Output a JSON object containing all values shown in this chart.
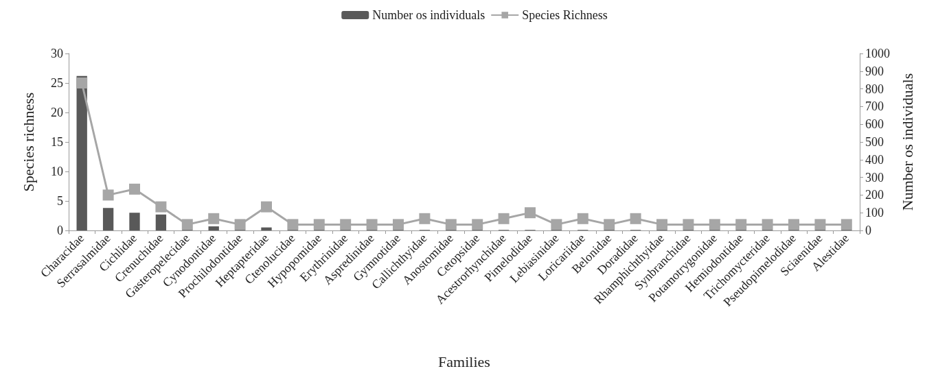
{
  "chart_data": {
    "type": "bar",
    "xlabel": "Families",
    "ylabel": "Species richness",
    "y2label": "Number os individuals",
    "categories": [
      "Characidae",
      "Serrasalmidae",
      "Cichlidae",
      "Crenuchidae",
      "Gasteropelecidae",
      "Cynodontidae",
      "Prochilodontidae",
      "Heptapteridae",
      "Ctenolucidae",
      "Hypopomidae",
      "Erythrinidae",
      "Aspredinidae",
      "Gymnotidae",
      "Callichthyidae",
      "Anostomidae",
      "Cetopsidae",
      "Acestrorhynchidae",
      "Pimelodidae",
      "Lebiasinidae",
      "Loricariidae",
      "Belonidae",
      "Doradidae",
      "Rhamphichthyidae",
      "Synbranchidae",
      "Potamotrygonidae",
      "Hemiodontidae",
      "Trichomycteridae",
      "Pseudopimelodidae",
      "Sciaenidae",
      "Alestidae"
    ],
    "series": [
      {
        "name": "Number os individuals",
        "axis": "y2",
        "color": "#595959",
        "values": [
          873,
          127,
          100,
          90,
          5,
          23,
          5,
          17,
          5,
          5,
          4,
          4,
          4,
          3,
          4,
          4,
          3,
          3,
          4,
          3,
          4,
          3,
          4,
          4,
          4,
          4,
          4,
          4,
          4,
          4
        ]
      },
      {
        "name": "Species Richness",
        "type": "line",
        "axis": "y",
        "color": "#a6a6a6",
        "values": [
          25,
          6,
          7,
          4,
          1,
          2,
          1,
          4,
          1,
          1,
          1,
          1,
          1,
          2,
          1,
          1,
          2,
          3,
          1,
          2,
          1,
          2,
          1,
          1,
          1,
          1,
          1,
          1,
          1,
          1
        ]
      }
    ],
    "ylim": [
      0,
      30
    ],
    "yticks": [
      0,
      5,
      10,
      15,
      20,
      25,
      30
    ],
    "y2lim": [
      0,
      1000
    ],
    "y2ticks": [
      0,
      100,
      200,
      300,
      400,
      500,
      600,
      700,
      800,
      900,
      1000
    ],
    "grid": false,
    "legend": "top",
    "marker": "square",
    "line_style": "solid"
  }
}
